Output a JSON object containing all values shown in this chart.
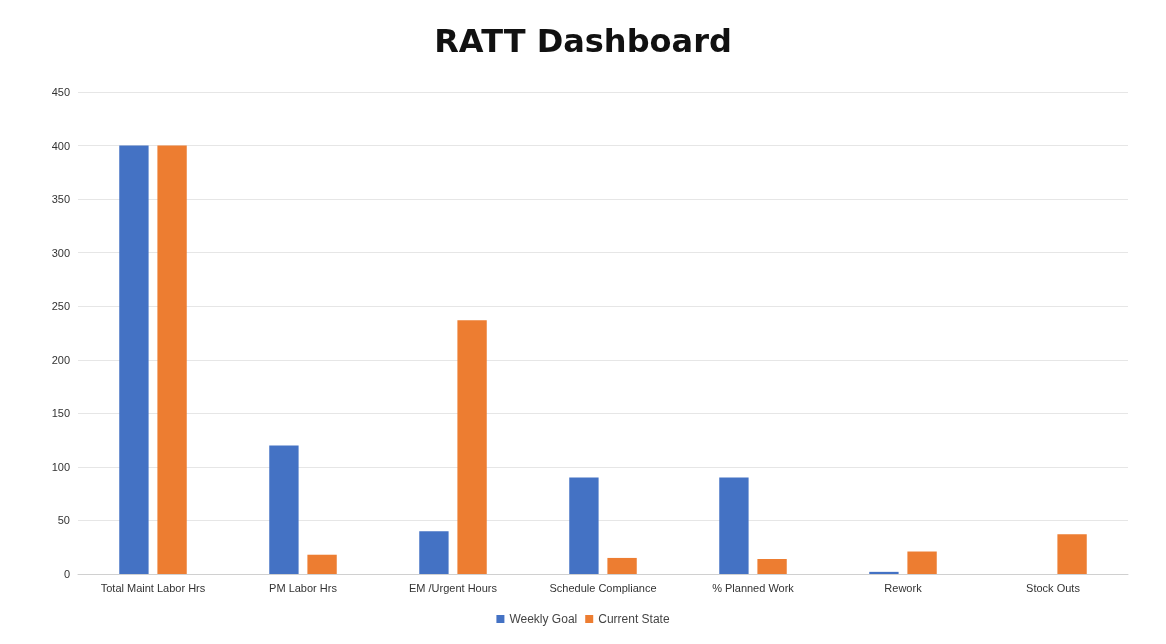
{
  "chart_data": {
    "type": "bar",
    "title": "RATT Dashboard",
    "categories": [
      "Total Maint Labor Hrs",
      "PM Labor Hrs",
      "EM /Urgent Hours",
      "Schedule Compliance",
      "% Planned Work",
      "Rework",
      "Stock Outs"
    ],
    "series": [
      {
        "name": "Weekly Goal",
        "color": "#4472c4",
        "values": [
          400,
          120,
          40,
          90,
          90,
          2,
          0
        ]
      },
      {
        "name": "Current State",
        "color": "#ed7d31",
        "values": [
          400,
          18,
          237,
          15,
          14,
          21,
          37
        ]
      }
    ],
    "ylim": [
      0,
      450
    ],
    "yticks": [
      0,
      50,
      100,
      150,
      200,
      250,
      300,
      350,
      400,
      450
    ],
    "grid": "y",
    "legend": "bottom"
  }
}
